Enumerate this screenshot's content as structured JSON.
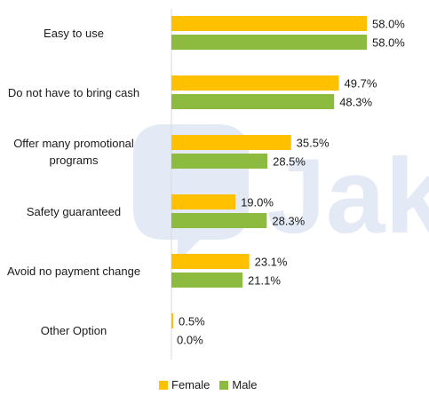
{
  "chart_data": {
    "type": "bar",
    "orientation": "horizontal",
    "categories": [
      "Easy to use",
      "Do not have to bring cash",
      "Offer many promotional programs",
      "Safety guaranteed",
      "Avoid no payment change",
      "Other Option"
    ],
    "category_lines": [
      [
        "Easy to use"
      ],
      [
        "Do not have to bring cash"
      ],
      [
        "Offer many promotional",
        "programs"
      ],
      [
        "Safety guaranteed"
      ],
      [
        "Avoid no payment change"
      ],
      [
        "Other Option"
      ]
    ],
    "series": [
      {
        "name": "Female",
        "color": "#FFC000",
        "values": [
          58.0,
          49.7,
          35.5,
          19.0,
          23.1,
          0.5
        ],
        "labels": [
          "58.0%",
          "49.7%",
          "35.5%",
          "19.0%",
          "23.1%",
          "0.5%"
        ]
      },
      {
        "name": "Male",
        "color": "#8DBB3F",
        "values": [
          58.0,
          48.3,
          28.5,
          28.3,
          21.1,
          0.0
        ],
        "labels": [
          "58.0%",
          "48.3%",
          "28.5%",
          "28.3%",
          "21.1%",
          "0.0%"
        ]
      }
    ],
    "xlim": [
      0,
      70
    ],
    "legend_position": "bottom",
    "grid": false,
    "title": "",
    "xlabel": "",
    "ylabel": ""
  },
  "watermark": {
    "text": "Jak",
    "color": "#dde6f5"
  }
}
